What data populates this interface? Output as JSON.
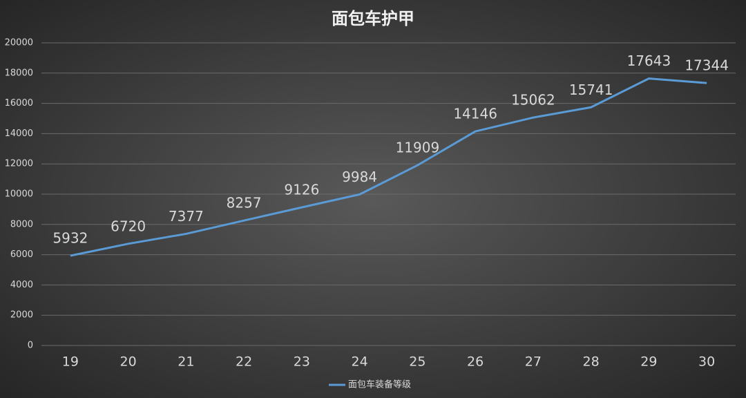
{
  "chart_data": {
    "type": "line",
    "title": "面包车护甲",
    "categories": [
      "19",
      "20",
      "21",
      "22",
      "23",
      "24",
      "25",
      "26",
      "27",
      "28",
      "29",
      "30"
    ],
    "series": [
      {
        "name": "面包车装备等级",
        "color": "#5b9bd5",
        "values": [
          5932,
          6720,
          7377,
          8257,
          9126,
          9984,
          11909,
          14146,
          15062,
          15741,
          17643,
          17344
        ]
      }
    ],
    "ylim": [
      0,
      20000
    ],
    "yticks": [
      0,
      2000,
      4000,
      6000,
      8000,
      10000,
      12000,
      14000,
      16000,
      18000,
      20000
    ],
    "grid": true,
    "legend": "bottom"
  }
}
